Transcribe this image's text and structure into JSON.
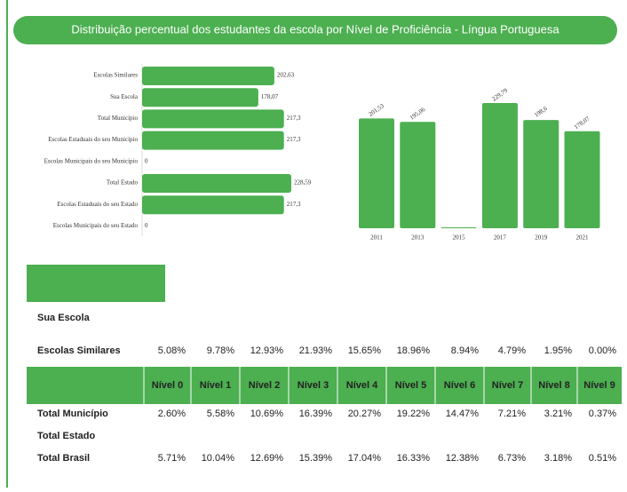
{
  "header": {
    "title": "Distribuição percentual dos estudantes da escola por Nível de Proficiência - Língua Portuguesa"
  },
  "chart_data": [
    {
      "type": "bar",
      "horizontal": true,
      "color": "#4caf50",
      "categories": [
        "Escolas Similares",
        "Sua Escola",
        "Total Município",
        "Escolas Estaduais do seu Município",
        "Escolas Municipais do seu Município",
        "Total Estado",
        "Escolas Estaduais do seu Estado",
        "Escolas Municipais do seu Estado"
      ],
      "values": [
        202.63,
        178.07,
        217.3,
        217.3,
        0,
        228.59,
        217.3,
        0
      ],
      "value_labels": [
        "202,63",
        "178,07",
        "217,3",
        "217,3",
        "0",
        "228,59",
        "217,3",
        "0"
      ],
      "xlim": [
        0,
        230
      ]
    },
    {
      "type": "bar",
      "horizontal": false,
      "color": "#4caf50",
      "categories": [
        "2011",
        "2013",
        "2015",
        "2017",
        "2019",
        "2021"
      ],
      "values": [
        201.53,
        195.06,
        0,
        229.79,
        198.6,
        178.07
      ],
      "value_labels": [
        "201,53",
        "195,06",
        null,
        "229,79",
        "198,6",
        "178,07"
      ],
      "ylim": [
        0,
        230
      ]
    }
  ],
  "table": {
    "top_rows": [
      [
        "Sua Escola"
      ],
      [
        "Escolas Similares",
        "5.08%",
        "9.78%",
        "12.93%",
        "21.93%",
        "15.65%",
        "18.96%",
        "8.94%",
        "4.79%",
        "1.95%",
        "0.00%"
      ]
    ],
    "columns": [
      "Nível 0",
      "Nível 1",
      "Nível 2",
      "Nível 3",
      "Nível 4",
      "Nível 5",
      "Nível 6",
      "Nível 7",
      "Nível 8",
      "Nível 9"
    ],
    "rows": [
      [
        "Total Município",
        "2.60%",
        "5.58%",
        "10.69%",
        "16.39%",
        "20.27%",
        "19.22%",
        "14.47%",
        "7.21%",
        "3.21%",
        "0.37%"
      ],
      [
        "Total Estado"
      ],
      [
        "Total Brasil",
        "5.71%",
        "10.04%",
        "12.69%",
        "15.39%",
        "17.04%",
        "16.33%",
        "12.38%",
        "6.73%",
        "3.18%",
        "0.51%"
      ]
    ]
  }
}
